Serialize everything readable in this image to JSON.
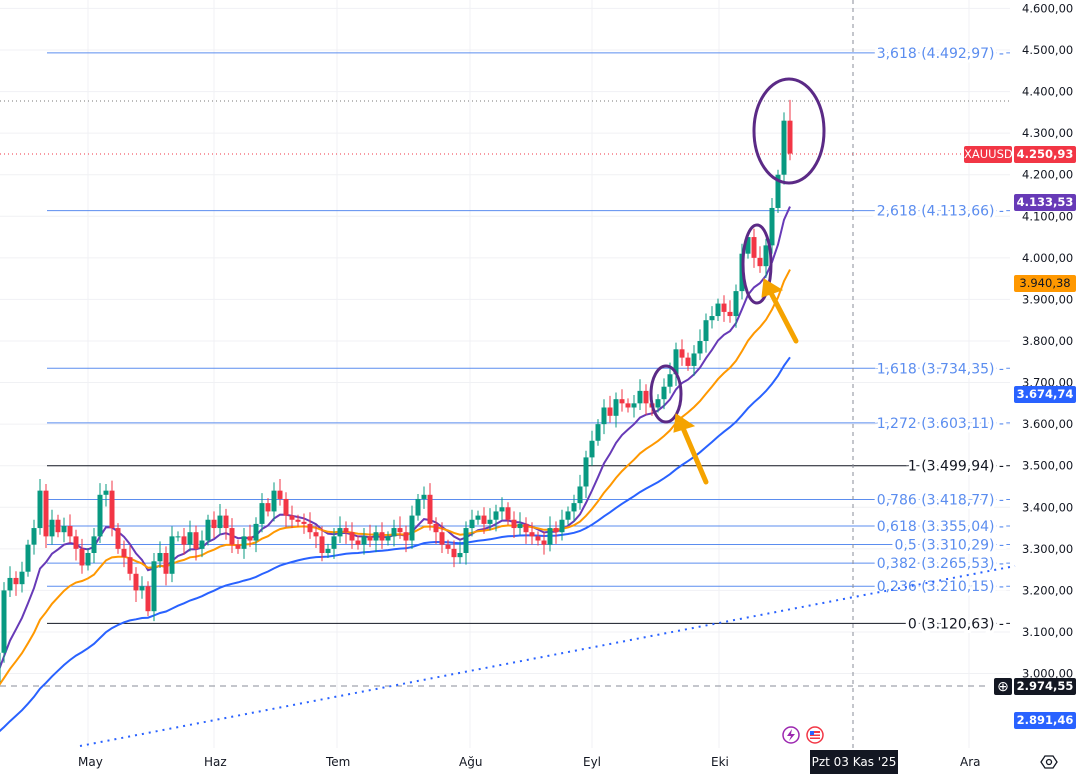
{
  "chart_data": {
    "type": "candlestick",
    "symbol": "XAUUSD",
    "ylim": [
      2900,
      4620
    ],
    "y_ticks": [
      "4.600,00",
      "4.500,00",
      "4.400,00",
      "4.300,00",
      "4.200,00",
      "4.100,00",
      "4.000,00",
      "3.900,00",
      "3.800,00",
      "3.700,00",
      "3.600,00",
      "3.500,00",
      "3.400,00",
      "3.300,00",
      "3.200,00",
      "3.100,00",
      "3.000,00"
    ],
    "y_tick_values": [
      4600,
      4500,
      4400,
      4300,
      4200,
      4100,
      4000,
      3900,
      3800,
      3700,
      3600,
      3500,
      3400,
      3300,
      3200,
      3100,
      3000
    ],
    "x_labels": [
      "May",
      "Haz",
      "Tem",
      "Ağu",
      "Eyl",
      "Eki",
      "Ara"
    ],
    "crosshair_date": "Pzt 03 Kas '25",
    "first_open": 2980,
    "closes": [
      3050,
      3200,
      3230,
      3215,
      3245,
      3310,
      3350,
      3440,
      3330,
      3370,
      3340,
      3355,
      3330,
      3300,
      3260,
      3290,
      3330,
      3430,
      3440,
      3350,
      3300,
      3280,
      3240,
      3200,
      3210,
      3150,
      3270,
      3290,
      3240,
      3330,
      3330,
      3310,
      3340,
      3300,
      3320,
      3370,
      3350,
      3380,
      3350,
      3310,
      3300,
      3330,
      3320,
      3360,
      3410,
      3390,
      3440,
      3420,
      3380,
      3370,
      3365,
      3360,
      3340,
      3330,
      3290,
      3300,
      3330,
      3350,
      3340,
      3320,
      3310,
      3330,
      3320,
      3340,
      3320,
      3330,
      3350,
      3340,
      3320,
      3380,
      3420,
      3430,
      3360,
      3340,
      3310,
      3300,
      3280,
      3290,
      3350,
      3370,
      3380,
      3360,
      3370,
      3390,
      3400,
      3370,
      3350,
      3360,
      3340,
      3330,
      3320,
      3310,
      3350,
      3340,
      3370,
      3390,
      3410,
      3450,
      3520,
      3560,
      3600,
      3640,
      3620,
      3660,
      3650,
      3640,
      3650,
      3680,
      3650,
      3640,
      3660,
      3690,
      3720,
      3780,
      3760,
      3740,
      3770,
      3800,
      3850,
      3860,
      3890,
      3870,
      3860,
      3920,
      4010,
      4050,
      4000,
      3980,
      4030,
      4120,
      4200,
      4330,
      4250.93
    ],
    "last_high": 4380,
    "fib_levels": [
      {
        "label": "3,618 (4.492,97)",
        "value": 4492.97,
        "color": "#5b8def"
      },
      {
        "label": "2,618 (4.113,66)",
        "value": 4113.66,
        "color": "#5b8def"
      },
      {
        "label": "1,618 (3.734,35)",
        "value": 3734.35,
        "color": "#5b8def"
      },
      {
        "label": "1,272 (3.603,11)",
        "value": 3603.11,
        "color": "#5b8def"
      },
      {
        "label": "1 (3.499,94)",
        "value": 3499.94,
        "color": "#131722"
      },
      {
        "label": "0,786 (3.418,77)",
        "value": 3418.77,
        "color": "#5b8def"
      },
      {
        "label": "0,618 (3.355,04)",
        "value": 3355.04,
        "color": "#5b8def"
      },
      {
        "label": "0,5 (3.310,29)",
        "value": 3310.29,
        "color": "#5b8def"
      },
      {
        "label": "0,382 (3.265,53)",
        "value": 3265.53,
        "color": "#5b8def"
      },
      {
        "label": "0,236 (3.210,15)",
        "value": 3210.15,
        "color": "#5b8def"
      },
      {
        "label": "0 (3.120,63)",
        "value": 3120.63,
        "color": "#131722"
      }
    ],
    "price_tags": {
      "symbol_label": "XAUUSD",
      "last_price": "4.250,93",
      "ma_fast": "4.133,53",
      "ma_mid": "3.940,38",
      "ma_slow": "3.674,74",
      "crosshair_price": "2.974,55",
      "trendline_price": "2.891,46"
    },
    "colors": {
      "up": "#089981",
      "down": "#f23645",
      "ma_fast": "#673ab7",
      "ma_mid": "#ff9800",
      "ma_slow": "#2962ff",
      "annotation": "#5b2a86",
      "arrow": "#f5a300"
    }
  }
}
